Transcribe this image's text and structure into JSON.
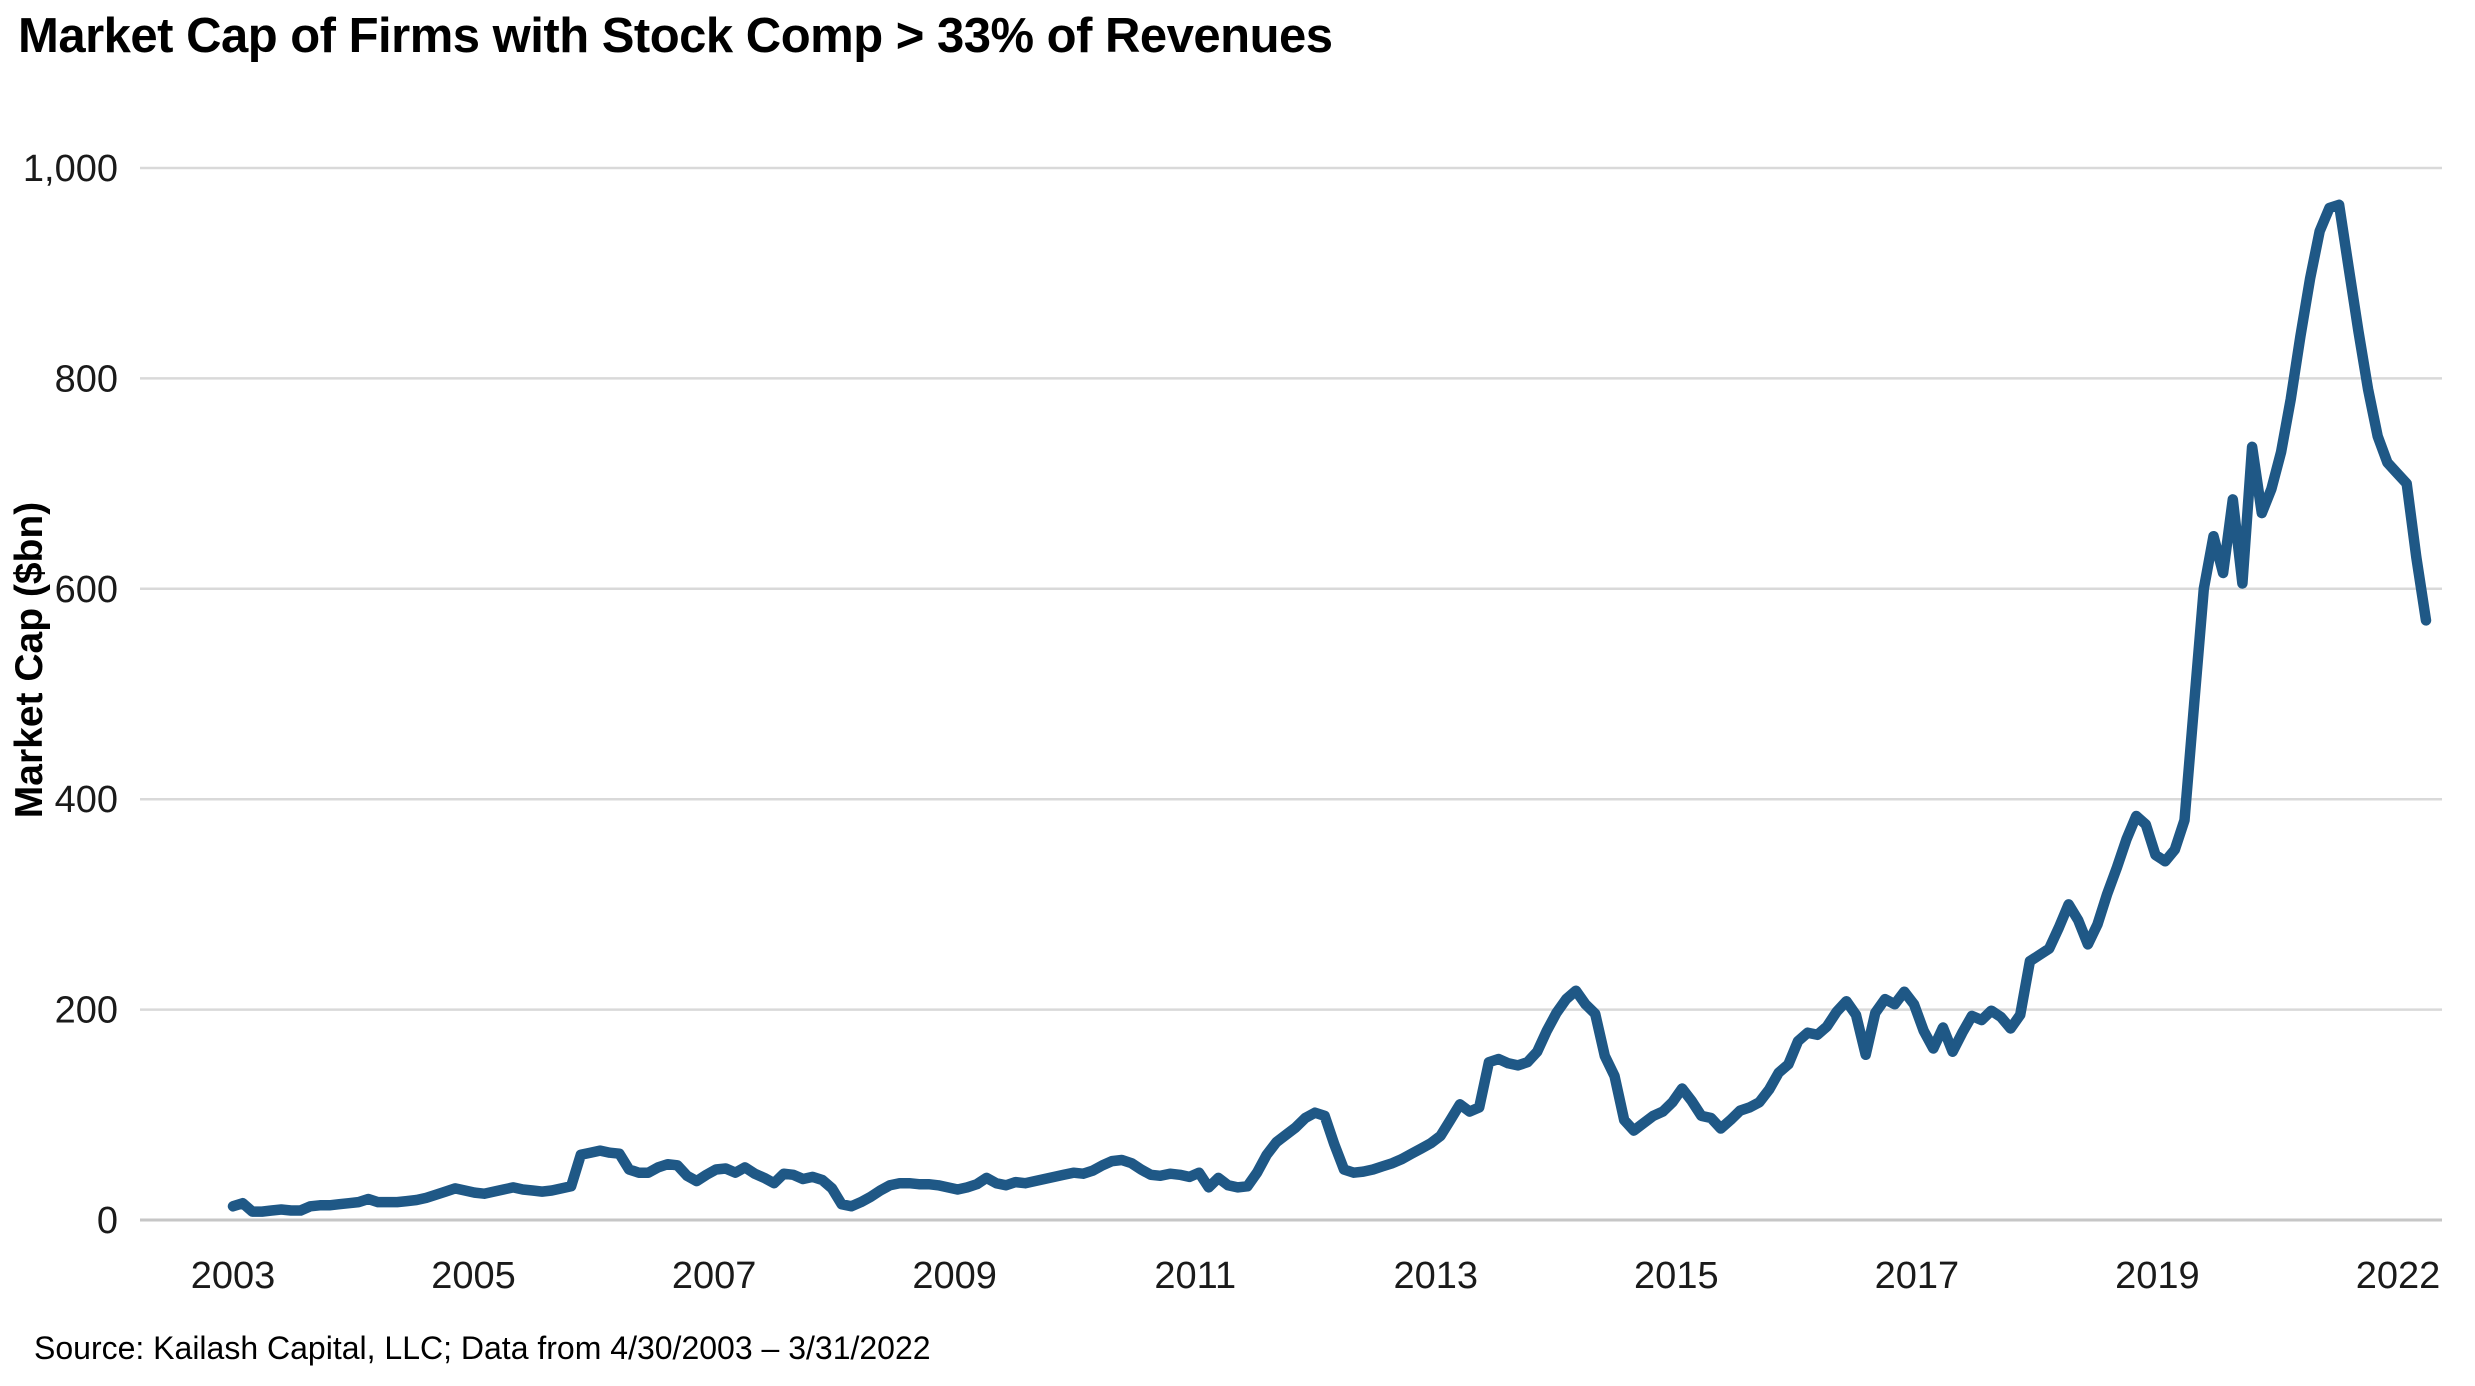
{
  "title": "Market Cap of Firms with Stock Comp > 33% of Revenues",
  "source_note": "Source: Kailash Capital, LLC; Data from 4/30/2003 – 3/31/2022",
  "colors": {
    "line": "#1f5886",
    "gridline": "#d9d9d9",
    "zero_line": "#c6c6c6",
    "tick_text": "#1a1a1a",
    "background": "#ffffff"
  },
  "chart_data": {
    "type": "line",
    "title": "Market Cap of Firms with Stock Comp > 33% of Revenues",
    "xlabel": "",
    "ylabel": "Market Cap ($bn)",
    "ylim": [
      0,
      1000
    ],
    "y_ticks": [
      0,
      200,
      400,
      600,
      800,
      1000
    ],
    "y_tick_labels": [
      "0",
      "200",
      "400",
      "600",
      "800",
      "1,000"
    ],
    "x_tick_labels": [
      "2003",
      "2005",
      "2007",
      "2009",
      "2011",
      "2013",
      "2015",
      "2017",
      "2019",
      "2022"
    ],
    "grid": "horizontal-only",
    "legend": "none",
    "frequency": "monthly",
    "x_start": "4/30/2003",
    "x_end": "3/31/2022",
    "series": [
      {
        "name": "Market Cap ($bn)",
        "values": [
          13,
          16,
          8,
          8,
          9,
          10,
          9,
          9,
          13,
          14,
          14,
          15,
          16,
          17,
          20,
          17,
          17,
          17,
          18,
          19,
          21,
          24,
          27,
          30,
          28,
          26,
          25,
          27,
          29,
          31,
          29,
          28,
          27,
          28,
          30,
          32,
          62,
          64,
          66,
          64,
          63,
          48,
          45,
          45,
          50,
          53,
          52,
          42,
          37,
          43,
          48,
          49,
          45,
          50,
          44,
          40,
          35,
          44,
          43,
          39,
          41,
          38,
          30,
          15,
          13,
          17,
          22,
          28,
          33,
          35,
          35,
          34,
          34,
          33,
          31,
          29,
          31,
          34,
          40,
          35,
          33,
          36,
          35,
          37,
          39,
          41,
          43,
          45,
          44,
          47,
          52,
          56,
          57,
          54,
          48,
          43,
          42,
          44,
          43,
          41,
          45,
          31,
          40,
          33,
          31,
          32,
          45,
          62,
          74,
          81,
          88,
          97,
          102,
          99,
          72,
          48,
          45,
          46,
          48,
          51,
          54,
          58,
          63,
          68,
          73,
          80,
          95,
          110,
          103,
          107,
          150,
          153,
          149,
          147,
          150,
          160,
          180,
          197,
          210,
          218,
          205,
          196,
          156,
          137,
          95,
          85,
          92,
          99,
          103,
          112,
          125,
          113,
          99,
          97,
          87,
          95,
          104,
          107,
          112,
          124,
          140,
          148,
          170,
          178,
          176,
          184,
          198,
          208,
          195,
          157,
          197,
          210,
          205,
          217,
          205,
          180,
          163,
          183,
          160,
          178,
          194,
          190,
          199,
          193,
          182,
          195,
          246,
          252,
          258,
          278,
          300,
          285,
          262,
          281,
          310,
          335,
          362,
          384,
          376,
          347,
          341,
          352,
          380,
          490,
          600,
          650,
          615,
          685,
          605,
          735,
          672,
          695,
          730,
          780,
          840,
          895,
          940,
          962,
          965,
          905,
          845,
          790,
          745,
          720,
          710,
          700,
          630,
          570
        ]
      }
    ]
  }
}
